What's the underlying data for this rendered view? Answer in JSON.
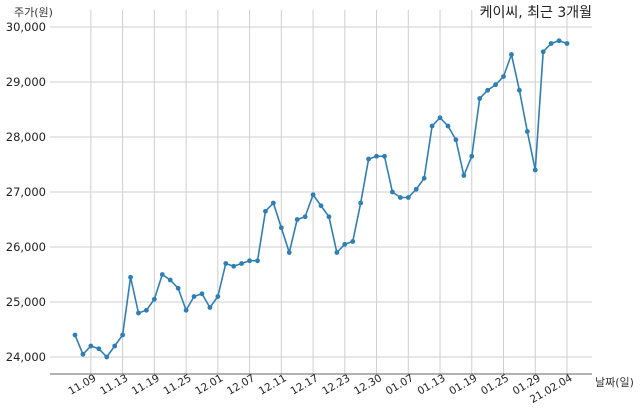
{
  "chart_data": {
    "type": "line",
    "title": "케이씨, 최근 3개월",
    "ylabel": "주가(원)",
    "xlabel": "날짜(일)",
    "ylim": [
      23700,
      30050
    ],
    "yticks": [
      24000,
      25000,
      26000,
      27000,
      28000,
      29000,
      30000
    ],
    "ytick_labels": [
      "24,000",
      "25,000",
      "26,000",
      "27,000",
      "28,000",
      "29,000",
      "30,000"
    ],
    "xtick_labels": [
      "11.09",
      "11.13",
      "11.19",
      "11.25",
      "12.01",
      "12.07",
      "12.11",
      "12.17",
      "12.23",
      "12.30",
      "01.07",
      "01.13",
      "01.19",
      "01.25",
      "01.29",
      "21.02.04"
    ],
    "xtick_index": [
      2,
      6,
      10,
      14,
      18,
      22,
      26,
      30,
      34,
      38,
      42,
      46,
      50,
      54,
      58,
      62
    ],
    "grid": true,
    "color": "#2f7fb5",
    "series": [
      {
        "values": [
          24400,
          24050,
          24200,
          24150,
          24000,
          24200,
          24400,
          25450,
          24800,
          24850,
          25050,
          25500,
          25400,
          25250,
          24850,
          25100,
          25150,
          24900,
          25100,
          25700,
          25650,
          25700,
          25750,
          25750,
          26650,
          26800,
          26350,
          25900,
          26500,
          26550,
          26950,
          26750,
          26550,
          25900,
          26050,
          26100,
          26800,
          27600,
          27650,
          27650,
          27000,
          26900,
          26900,
          27050,
          27250,
          28200,
          28350,
          28200,
          27950,
          27300,
          27650,
          28700,
          28850,
          28950,
          29100,
          29500,
          28850,
          28100,
          27400,
          29550,
          29700,
          29750,
          29700
        ]
      }
    ]
  }
}
